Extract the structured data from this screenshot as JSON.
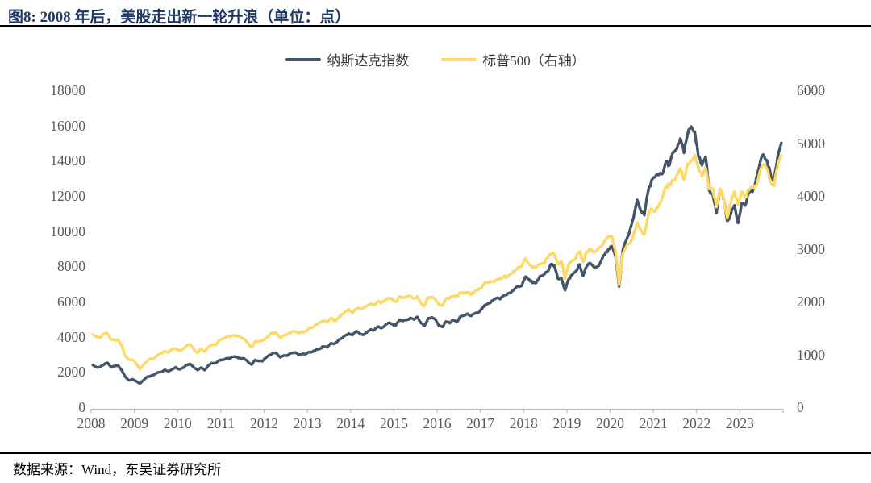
{
  "header": {
    "title": "图8:  2008 年后，美股走出新一轮升浪（单位：点）"
  },
  "footer": {
    "source": "数据来源：Wind，东吴证券研究所"
  },
  "colors": {
    "nasdaq": "#44546A",
    "sp500": "#FFD966",
    "title_text": "#1F3864",
    "axis_text": "#595959",
    "axis_line": "#BFBFBF"
  },
  "chart_data": {
    "type": "line",
    "title": "图8: 2008 年后，美股走出新一轮升浪（单位：点）",
    "x_start_year": 2008,
    "points_per_year": 12,
    "x_tick_labels": [
      "2008",
      "2009",
      "2010",
      "2011",
      "2012",
      "2013",
      "2014",
      "2015",
      "2016",
      "2017",
      "2018",
      "2019",
      "2020",
      "2021",
      "2022",
      "2023"
    ],
    "grid": "off",
    "legend_position": "top-center",
    "left_axis": {
      "label": "纳斯达克指数",
      "ticks": [
        0,
        2000,
        4000,
        6000,
        8000,
        10000,
        12000,
        14000,
        16000,
        18000
      ],
      "max": 18000
    },
    "right_axis": {
      "label": "标普500",
      "ticks": [
        0,
        1000,
        2000,
        3000,
        4000,
        5000,
        6000
      ],
      "max": 6000
    },
    "series": [
      {
        "name": "纳斯达克指数",
        "axis": "left",
        "color": "#44546A",
        "values": [
          2390,
          2270,
          2280,
          2410,
          2520,
          2290,
          2330,
          2370,
          2090,
          1720,
          1530,
          1580,
          1480,
          1340,
          1530,
          1720,
          1770,
          1840,
          1980,
          2010,
          2120,
          2050,
          2150,
          2270,
          2150,
          2240,
          2400,
          2460,
          2260,
          2110,
          2250,
          2110,
          2370,
          2510,
          2500,
          2650,
          2700,
          2780,
          2780,
          2870,
          2840,
          2770,
          2760,
          2580,
          2420,
          2680,
          2620,
          2610,
          2810,
          2970,
          3090,
          3050,
          2830,
          2940,
          2940,
          3070,
          3120,
          2980,
          3010,
          3020,
          3140,
          3160,
          3270,
          3330,
          3460,
          3400,
          3630,
          3590,
          3770,
          3920,
          4060,
          4180,
          4100,
          4310,
          4200,
          4110,
          4240,
          4410,
          4370,
          4580,
          4490,
          4630,
          4790,
          4740,
          4640,
          4960,
          4900,
          4940,
          5070,
          4990,
          5130,
          4780,
          4620,
          5050,
          5100,
          5010,
          4610,
          4560,
          4870,
          4780,
          4950,
          4840,
          5160,
          5210,
          5310,
          5190,
          5320,
          5380,
          5610,
          5830,
          5910,
          6050,
          6200,
          6140,
          6350,
          6430,
          6500,
          6730,
          6870,
          6900,
          7410,
          7270,
          7060,
          7070,
          7440,
          7510,
          7670,
          8110,
          8050,
          7310,
          7330,
          6640,
          7280,
          7530,
          7730,
          8100,
          7450,
          8010,
          8180,
          7960,
          7990,
          8290,
          8670,
          8970,
          9150,
          8570,
          6860,
          8890,
          9490,
          10060,
          10750,
          11780,
          11170,
          10910,
          12200,
          12890,
          13070,
          13190,
          13250,
          13960,
          13750,
          14500,
          14670,
          15260,
          14450,
          15500,
          15940,
          15640,
          14240,
          13750,
          14220,
          12330,
          12080,
          11030,
          12390,
          11820,
          10580,
          10990,
          11470,
          10470,
          11580,
          11460,
          12220,
          12230,
          12940,
          13790,
          14350,
          14030,
          13220,
          12850,
          14230,
          15010
        ]
      },
      {
        "name": "标普500（右轴）",
        "axis": "right",
        "color": "#FFD966",
        "values": [
          1380,
          1330,
          1320,
          1390,
          1400,
          1280,
          1270,
          1280,
          1160,
          970,
          900,
          900,
          830,
          720,
          800,
          870,
          920,
          920,
          990,
          1020,
          1060,
          1040,
          1100,
          1110,
          1070,
          1100,
          1170,
          1190,
          1090,
          1030,
          1100,
          1050,
          1140,
          1180,
          1180,
          1260,
          1290,
          1330,
          1330,
          1360,
          1350,
          1320,
          1290,
          1220,
          1130,
          1250,
          1250,
          1260,
          1310,
          1370,
          1410,
          1400,
          1310,
          1360,
          1380,
          1410,
          1440,
          1410,
          1420,
          1430,
          1500,
          1510,
          1570,
          1600,
          1630,
          1610,
          1690,
          1630,
          1680,
          1760,
          1810,
          1850,
          1780,
          1860,
          1870,
          1880,
          1920,
          1960,
          1930,
          2000,
          1970,
          2020,
          2070,
          2060,
          1990,
          2100,
          2070,
          2090,
          2110,
          2060,
          2100,
          1970,
          1920,
          2080,
          2080,
          2040,
          1940,
          1930,
          2060,
          2070,
          2100,
          2100,
          2170,
          2170,
          2170,
          2130,
          2200,
          2240,
          2280,
          2360,
          2360,
          2380,
          2410,
          2420,
          2470,
          2470,
          2520,
          2580,
          2650,
          2670,
          2820,
          2710,
          2640,
          2650,
          2700,
          2720,
          2820,
          2900,
          2910,
          2710,
          2760,
          2440,
          2700,
          2780,
          2830,
          2950,
          2750,
          2940,
          2980,
          2930,
          2980,
          3040,
          3140,
          3230,
          3230,
          2950,
          2320,
          2910,
          3040,
          3100,
          3270,
          3500,
          3360,
          3270,
          3620,
          3760,
          3710,
          3810,
          3970,
          4180,
          4200,
          4300,
          4400,
          4520,
          4310,
          4610,
          4670,
          4770,
          4520,
          4370,
          4530,
          4130,
          4130,
          3790,
          4130,
          3950,
          3590,
          3870,
          4080,
          3840,
          4080,
          3970,
          4110,
          4170,
          4180,
          4450,
          4590,
          4510,
          4290,
          4190,
          4570,
          4770
        ]
      }
    ]
  }
}
